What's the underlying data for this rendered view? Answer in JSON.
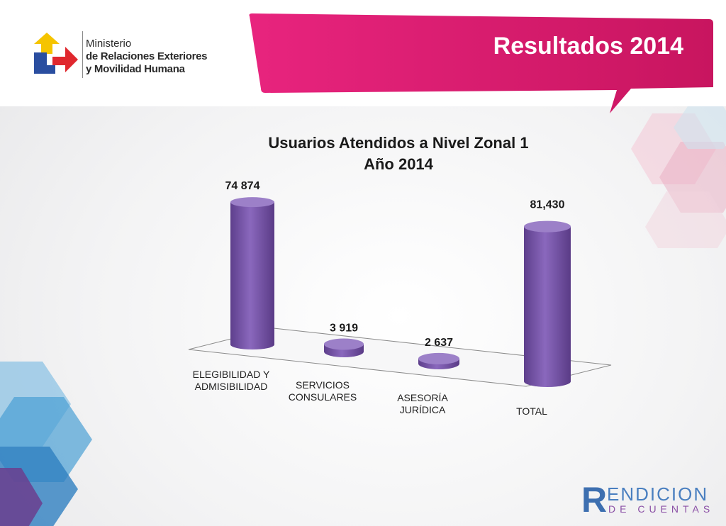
{
  "header": {
    "ministry_line1": "Ministerio",
    "ministry_line2": "de Relaciones Exteriores",
    "ministry_line3": "y Movilidad Humana",
    "slide_title": "Resultados 2014"
  },
  "colors": {
    "banner": "#e0207a",
    "bar_body": "#7a5aa8",
    "bar_top": "#9c80c8",
    "logo_yellow": "#f5c400",
    "logo_blue": "#2a4ea0",
    "logo_red": "#e0282e"
  },
  "chart_data": {
    "type": "bar",
    "style": "3d-cylinder",
    "title_line1": "Usuarios Atendidos a Nivel Zonal 1",
    "title_line2": "Año 2014",
    "categories": [
      [
        "ELEGIBILIDAD Y",
        "ADMISIBILIDAD"
      ],
      [
        "SERVICIOS",
        "CONSULARES"
      ],
      [
        "ASESORÍA",
        "JURÍDICA"
      ],
      [
        "TOTAL"
      ]
    ],
    "values": [
      74874,
      3919,
      2637,
      81430
    ],
    "data_labels": [
      "74 874",
      "3 919",
      "2 637",
      "81,430"
    ],
    "ylim": [
      0,
      85000
    ],
    "grid": false,
    "legend": "none"
  },
  "footer": {
    "brand_r": "R",
    "brand_top": "ENDICION",
    "brand_bottom": "DE CUENTAS"
  }
}
